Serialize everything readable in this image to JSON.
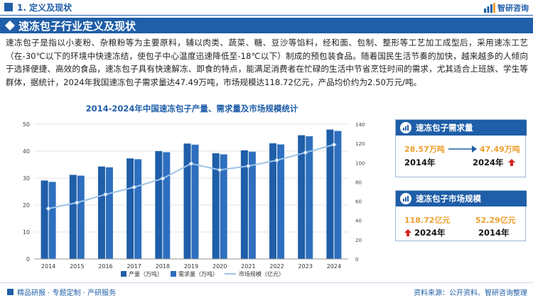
{
  "header": {
    "section_title": "1. 定义及现状",
    "logo_text": "智研咨询"
  },
  "banner": {
    "title": "速冻包子行业定义及现状"
  },
  "paragraph": "速冻包子是指以小麦粉、杂粮粉等为主要原料，辅以肉类、蔬菜、糖、豆沙等馅料，经和面、包制、整形等工艺加工成型后，采用速冻工艺（在-30℃以下的环境中快速冻结，使包子中心温度迅速降低至-18℃以下）制成的预包装食品。随着国民生活节奏的加快，越来越多的人倾向于选择便捷、高效的食品，速冻包子具有快速解冻、即食的特点，能满足消费者在忙碌的生活中节省烹饪时间的需求，尤其适合上班族、学生等群体，据统计，2024年我国速冻包子需求量达47.49万吨，市场规模达118.72亿元，产品均价约为2.50万元/吨。",
  "chart_data": {
    "type": "bar",
    "title": "2014-2024年中国速冻包子产量、需求量及市场规模统计",
    "categories": [
      "2014",
      "2015",
      "2016",
      "2017",
      "2018",
      "2019",
      "2020",
      "2021",
      "2022",
      "2023",
      "2024"
    ],
    "series": [
      {
        "name": "产量（万吨）",
        "type": "bar",
        "axis": "left",
        "color": "#1f5ea8",
        "values": [
          29.1,
          31.2,
          34.3,
          37.3,
          40.0,
          42.8,
          39.2,
          40.3,
          42.9,
          45.9,
          48.0
        ]
      },
      {
        "name": "需求量（万吨）",
        "type": "bar",
        "axis": "left",
        "color": "#2e6fbf",
        "values": [
          28.6,
          30.9,
          34.0,
          37.0,
          39.6,
          42.4,
          38.8,
          39.8,
          42.5,
          45.5,
          47.49
        ]
      },
      {
        "name": "市场规模（亿元）",
        "type": "line",
        "axis": "right",
        "color": "#9ec3e8",
        "values": [
          52.29,
          58.5,
          67.0,
          74.5,
          83.5,
          99.0,
          92.5,
          96.5,
          102.5,
          110.5,
          118.72
        ]
      }
    ],
    "left_axis": {
      "min": 0,
      "max": 50,
      "ticks": [
        0,
        10,
        20,
        30,
        40,
        50
      ]
    },
    "right_axis": {
      "min": 0,
      "max": 140,
      "ticks": [
        0,
        20,
        40,
        60,
        80,
        100,
        120,
        140
      ]
    },
    "legend_position": "bottom"
  },
  "cards": {
    "demand": {
      "title": "速冻包子需求量",
      "from_value": "28.57万吨",
      "from_year": "2014年",
      "to_value": "47.49万吨",
      "to_year": "2024年"
    },
    "market": {
      "title": "速冻包子市场规模",
      "from_value": "118.72亿元",
      "from_year": "2024年",
      "to_value": "52.29亿元",
      "to_year": "2014年"
    }
  },
  "footer": {
    "left_text": "精品研报 · 专题定制 · 产研服务",
    "source": "资料来源：公开资料、智研咨询整理"
  },
  "colors": {
    "brand": "#1f5ea8",
    "accent": "#f0a030",
    "up_arrow": "#d42020"
  }
}
